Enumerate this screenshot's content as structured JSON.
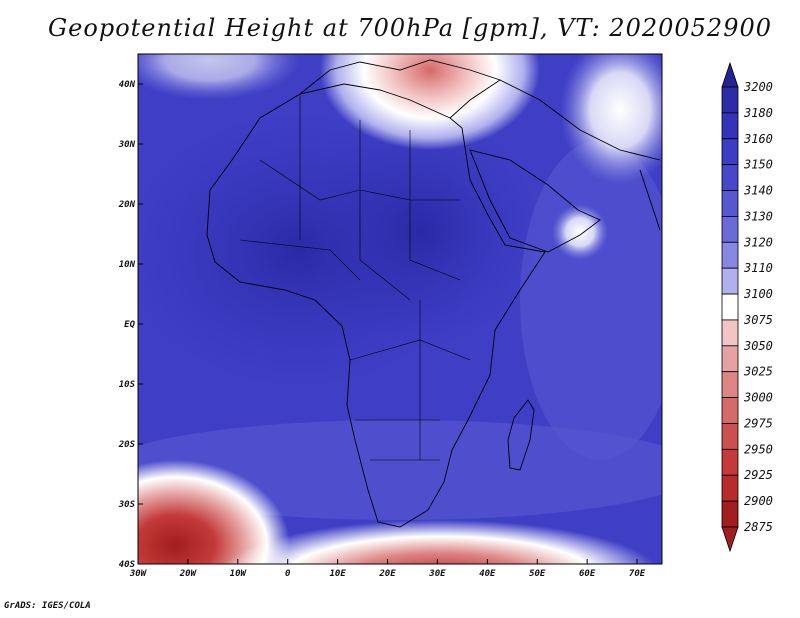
{
  "title": "Geopotential Height at 700hPa [gpm], VT: 2020052900",
  "credit": "GrADS: IGES/COLA",
  "map": {
    "lon_range": [
      -30,
      75
    ],
    "lat_range": [
      -40,
      45
    ],
    "lon_ticks": [
      "30W",
      "20W",
      "10W",
      "0",
      "10E",
      "20E",
      "30E",
      "40E",
      "50E",
      "60E",
      "70E"
    ],
    "lat_ticks": [
      "40N",
      "30N",
      "20N",
      "10N",
      "EQ",
      "10S",
      "20S",
      "30S",
      "40S"
    ],
    "colors": {
      "background_field": "#3f3fc6",
      "land_outline": "#000000"
    }
  },
  "colorbar": {
    "levels": [
      "3200",
      "3180",
      "3160",
      "3150",
      "3140",
      "3130",
      "3120",
      "3110",
      "3100",
      "3075",
      "3050",
      "3025",
      "3000",
      "2975",
      "2950",
      "2925",
      "2900",
      "2875"
    ],
    "colors": [
      "#232394",
      "#2c2ca8",
      "#3434b8",
      "#3c3cc4",
      "#4747cc",
      "#5757d2",
      "#6a6ad8",
      "#8888e2",
      "#b0b0ee",
      "#ffffff",
      "#f2c4c4",
      "#e6a2a2",
      "#dd8585",
      "#d56a6a",
      "#cc5050",
      "#c43a3a",
      "#b92a2a",
      "#a01e1e"
    ]
  }
}
